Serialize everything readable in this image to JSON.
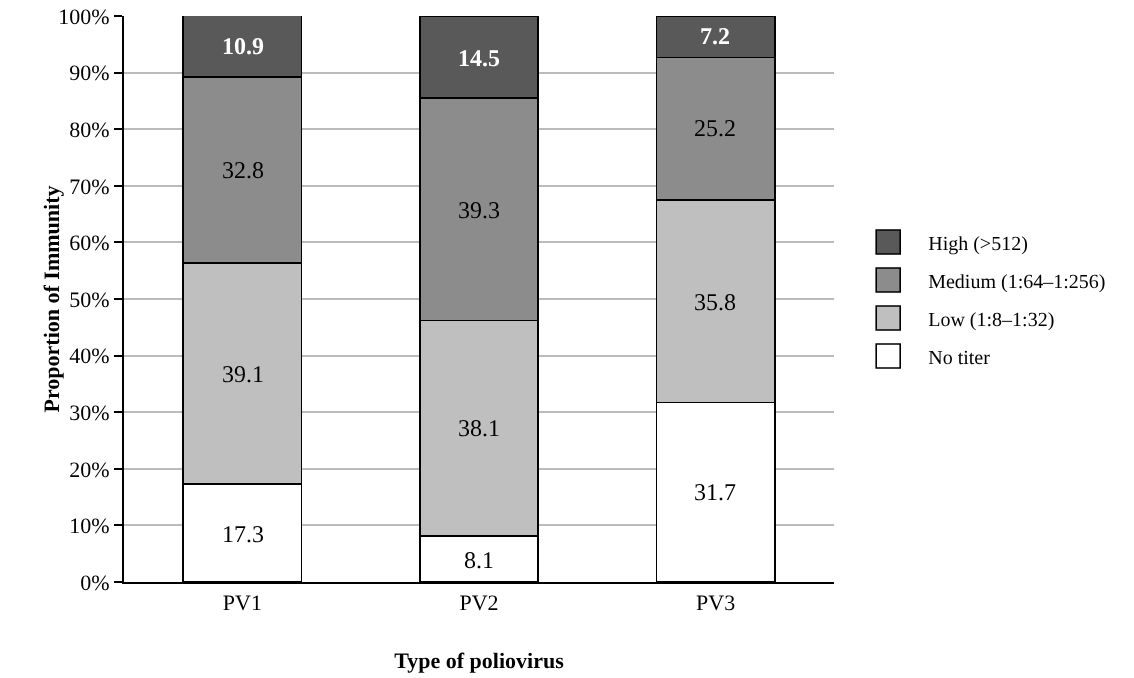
{
  "chart_data": {
    "type": "bar",
    "stacked": true,
    "xlabel": "Type of poliovirus",
    "ylabel": "Proportion of Immunity",
    "categories": [
      "PV1",
      "PV2",
      "PV3"
    ],
    "series": [
      {
        "name": "No titer",
        "color": "#ffffff",
        "values": [
          17.3,
          8.1,
          31.7
        ]
      },
      {
        "name": "Low (1:8–1:32)",
        "color": "#bfbfbf",
        "values": [
          39.1,
          38.1,
          35.8
        ]
      },
      {
        "name": "Medium (1:64–1:256)",
        "color": "#8c8c8c",
        "values": [
          32.8,
          39.3,
          25.2
        ]
      },
      {
        "name": "High (>512)",
        "color": "#595959",
        "values": [
          10.9,
          14.5,
          7.2
        ]
      }
    ],
    "ylim": [
      0,
      100
    ],
    "yticks": [
      {
        "value": 0,
        "label": "0%"
      },
      {
        "value": 10,
        "label": "10%"
      },
      {
        "value": 20,
        "label": "20%"
      },
      {
        "value": 30,
        "label": "30%"
      },
      {
        "value": 40,
        "label": "40%"
      },
      {
        "value": 50,
        "label": "50%"
      },
      {
        "value": 60,
        "label": "60%"
      },
      {
        "value": 70,
        "label": "70%"
      },
      {
        "value": 80,
        "label": "80%"
      },
      {
        "value": 90,
        "label": "90%"
      },
      {
        "value": 100,
        "label": "100%"
      }
    ],
    "grid": "y",
    "legend": "right",
    "data_labels": true
  }
}
